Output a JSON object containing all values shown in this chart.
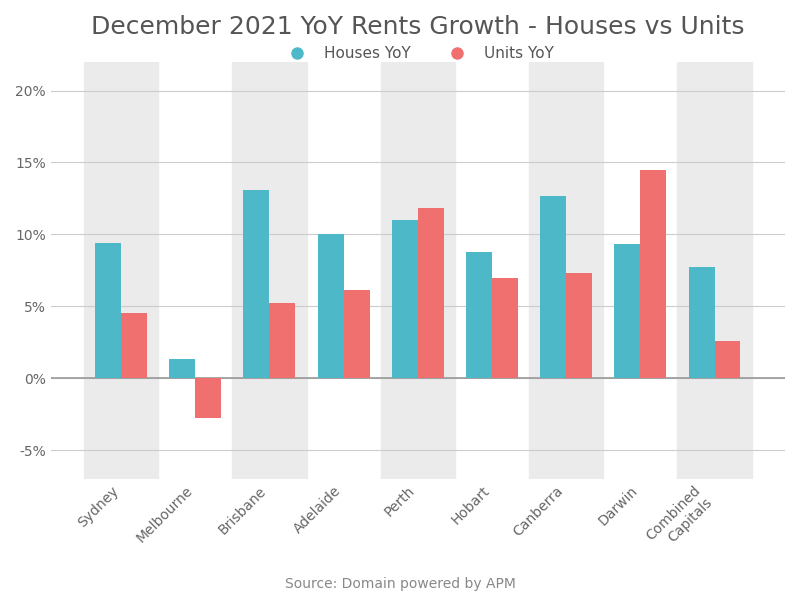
{
  "title": "December 2021 YoY Rents Growth - Houses vs Units",
  "categories": [
    "Sydney",
    "Melbourne",
    "Brisbane",
    "Adelaide",
    "Perth",
    "Hobart",
    "Canberra",
    "Darwin",
    "Combined\nCapitals"
  ],
  "houses_yoy": [
    9.4,
    1.3,
    13.1,
    10.0,
    11.0,
    8.8,
    12.7,
    9.3,
    7.7
  ],
  "units_yoy": [
    4.5,
    -2.8,
    5.2,
    6.1,
    11.8,
    7.0,
    7.3,
    14.5,
    2.6
  ],
  "house_color": "#4DB8C8",
  "unit_color": "#F07070",
  "bg_color": "#FFFFFF",
  "stripe_color": "#EBEBEB",
  "ylim": [
    -7,
    22
  ],
  "yticks": [
    -5,
    0,
    5,
    10,
    15,
    20
  ],
  "ytick_labels": [
    "-5%",
    "0%",
    "5%",
    "10%",
    "15%",
    "20%"
  ],
  "legend_houses": "Houses YoY",
  "legend_units": "Units YoY",
  "source_text": "Source: Domain powered by APM",
  "title_fontsize": 18,
  "label_fontsize": 11,
  "tick_fontsize": 10,
  "source_fontsize": 10,
  "bar_width": 0.35
}
